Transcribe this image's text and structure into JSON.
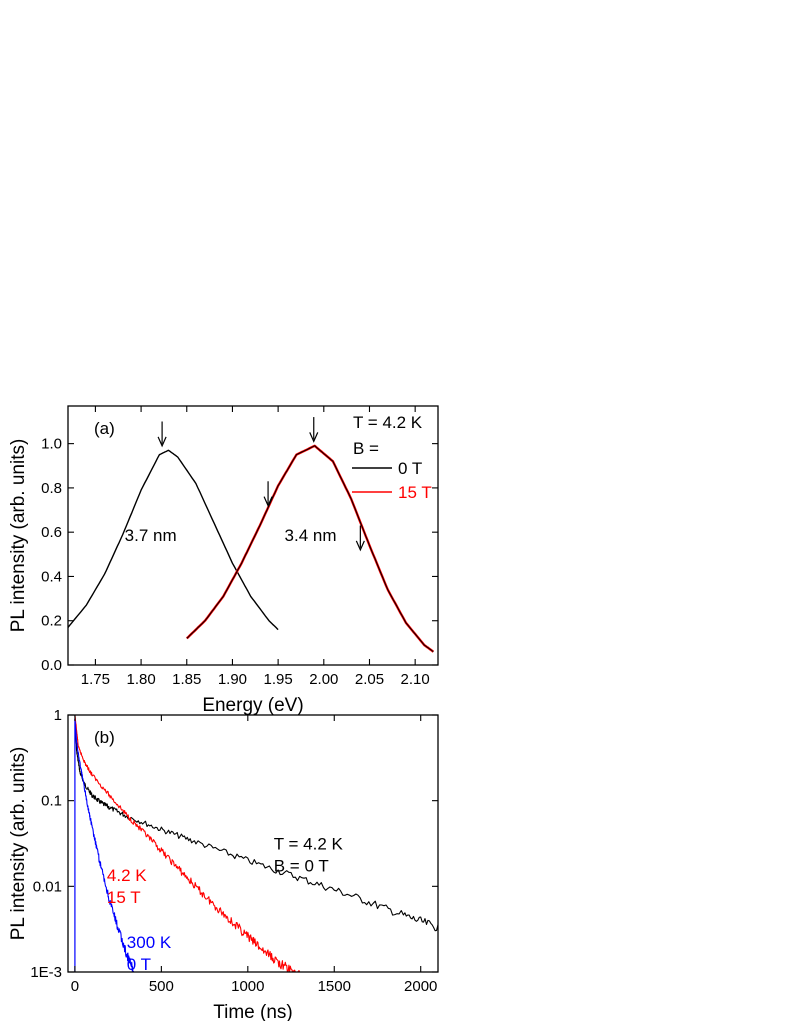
{
  "chart_data": [
    {
      "id": "a",
      "type": "line",
      "panel_label": "(a)",
      "xlabel": "Energy (eV)",
      "ylabel": "PL intensity (arb. units)",
      "xlim": [
        1.72,
        2.125
      ],
      "ylim": [
        0.0,
        1.17
      ],
      "xticks": [
        {
          "v": 1.75,
          "label": "1.75"
        },
        {
          "v": 1.8,
          "label": "1.80"
        },
        {
          "v": 1.85,
          "label": "1.85"
        },
        {
          "v": 1.9,
          "label": "1.90"
        },
        {
          "v": 1.95,
          "label": "1.95"
        },
        {
          "v": 2.0,
          "label": "2.00"
        },
        {
          "v": 2.05,
          "label": "2.05"
        },
        {
          "v": 2.1,
          "label": "2.10"
        }
      ],
      "yticks": [
        {
          "v": 0.0,
          "label": "0.0"
        },
        {
          "v": 0.2,
          "label": "0.2"
        },
        {
          "v": 0.4,
          "label": "0.4"
        },
        {
          "v": 0.6,
          "label": "0.6"
        },
        {
          "v": 0.8,
          "label": "0.8"
        },
        {
          "v": 1.0,
          "label": "1.0"
        }
      ],
      "legend_title": [
        "T = 4.2 K",
        "B ="
      ],
      "series": [
        {
          "name": "0 T",
          "color": "#000000",
          "stroke": 1.4,
          "x": [
            1.72,
            1.74,
            1.76,
            1.78,
            1.8,
            1.82,
            1.83,
            1.84,
            1.86,
            1.88,
            1.9,
            1.92,
            1.94,
            1.95
          ],
          "y": [
            0.17,
            0.27,
            0.41,
            0.59,
            0.79,
            0.95,
            0.97,
            0.94,
            0.82,
            0.64,
            0.46,
            0.31,
            0.2,
            0.16
          ]
        },
        {
          "name": "15 T",
          "color": "#ff0000",
          "stroke": 2.4,
          "x": [
            1.85,
            1.87,
            1.89,
            1.91,
            1.93,
            1.95,
            1.97,
            1.99,
            2.01,
            2.03,
            2.05,
            2.07,
            2.09,
            2.11,
            2.12
          ],
          "y": [
            0.12,
            0.2,
            0.31,
            0.46,
            0.63,
            0.81,
            0.95,
            0.99,
            0.92,
            0.75,
            0.54,
            0.34,
            0.19,
            0.09,
            0.06
          ]
        },
        {
          "name": "0 T",
          "color": "#000000",
          "stroke": 1.0,
          "x": [
            1.85,
            1.87,
            1.89,
            1.91,
            1.93,
            1.95,
            1.97,
            1.99,
            2.01,
            2.03,
            2.05,
            2.07,
            2.09,
            2.11,
            2.12
          ],
          "y": [
            0.12,
            0.2,
            0.31,
            0.46,
            0.63,
            0.81,
            0.95,
            0.99,
            0.92,
            0.75,
            0.54,
            0.34,
            0.19,
            0.09,
            0.06
          ]
        }
      ],
      "annotations": [
        {
          "text": "3.7 nm",
          "x": 1.782,
          "y": 0.56,
          "color": "#000000"
        },
        {
          "text": "3.4 nm",
          "x": 1.957,
          "y": 0.56,
          "color": "#000000"
        }
      ],
      "arrows": [
        {
          "x": 1.823,
          "y_from": 1.1,
          "y_to": 0.99
        },
        {
          "x": 1.989,
          "y_from": 1.12,
          "y_to": 1.01
        },
        {
          "x": 1.939,
          "y_from": 0.83,
          "y_to": 0.72
        },
        {
          "x": 2.04,
          "y_from": 0.63,
          "y_to": 0.52
        }
      ]
    },
    {
      "id": "b",
      "type": "line",
      "panel_label": "(b)",
      "xlabel": "Time (ns)",
      "ylabel": "PL intensity (arb. units)",
      "yscale": "log",
      "xlim": [
        -40,
        2100
      ],
      "ylim": [
        0.001,
        1.0
      ],
      "xticks": [
        {
          "v": 0,
          "label": "0"
        },
        {
          "v": 500,
          "label": "500"
        },
        {
          "v": 1000,
          "label": "1000"
        },
        {
          "v": 1500,
          "label": "1500"
        },
        {
          "v": 2000,
          "label": "2000"
        }
      ],
      "yticks": [
        {
          "v": 1,
          "label": "1"
        },
        {
          "v": 0.1,
          "label": "0.1"
        },
        {
          "v": 0.01,
          "label": "0.01"
        },
        {
          "v": 0.001,
          "label": "1E-3"
        }
      ],
      "series": [
        {
          "name": "T = 4.2 K B = 0 T",
          "color": "#000000",
          "x": [
            0,
            10,
            30,
            60,
            100,
            150,
            200,
            300,
            500,
            700,
            1000,
            1300,
            1600,
            1900,
            2100
          ],
          "y": [
            1.0,
            0.38,
            0.21,
            0.15,
            0.115,
            0.095,
            0.083,
            0.066,
            0.046,
            0.033,
            0.02,
            0.0125,
            0.0078,
            0.0046,
            0.0033
          ]
        },
        {
          "name": "4.2 K 15 T",
          "color": "#ff0000",
          "x": [
            0,
            20,
            60,
            100,
            200,
            300,
            400,
            500,
            600,
            700,
            800,
            900,
            1000,
            1100,
            1200,
            1300
          ],
          "y": [
            1.0,
            0.42,
            0.27,
            0.2,
            0.115,
            0.068,
            0.042,
            0.026,
            0.016,
            0.0098,
            0.0062,
            0.004,
            0.0026,
            0.0017,
            0.0012,
            0.0009
          ]
        },
        {
          "name": "300 K 0 T",
          "color": "#0000ff",
          "x": [
            0,
            10,
            25,
            50,
            75,
            100,
            150,
            200,
            250,
            300,
            340
          ],
          "y": [
            0.9,
            0.48,
            0.3,
            0.16,
            0.085,
            0.048,
            0.017,
            0.0068,
            0.0032,
            0.0016,
            0.001
          ]
        }
      ],
      "annotations": [
        {
          "lines": [
            "T = 4.2 K",
            "B = 0 T"
          ],
          "x": 1150,
          "y": 0.027,
          "color": "#000000"
        },
        {
          "lines": [
            "4.2 K",
            "15 T"
          ],
          "x": 185,
          "y": 0.0115,
          "color": "#ff0000"
        },
        {
          "lines": [
            "300 K",
            "0 T"
          ],
          "x": 300,
          "y": 0.0019,
          "color": "#0000ff"
        }
      ]
    }
  ]
}
